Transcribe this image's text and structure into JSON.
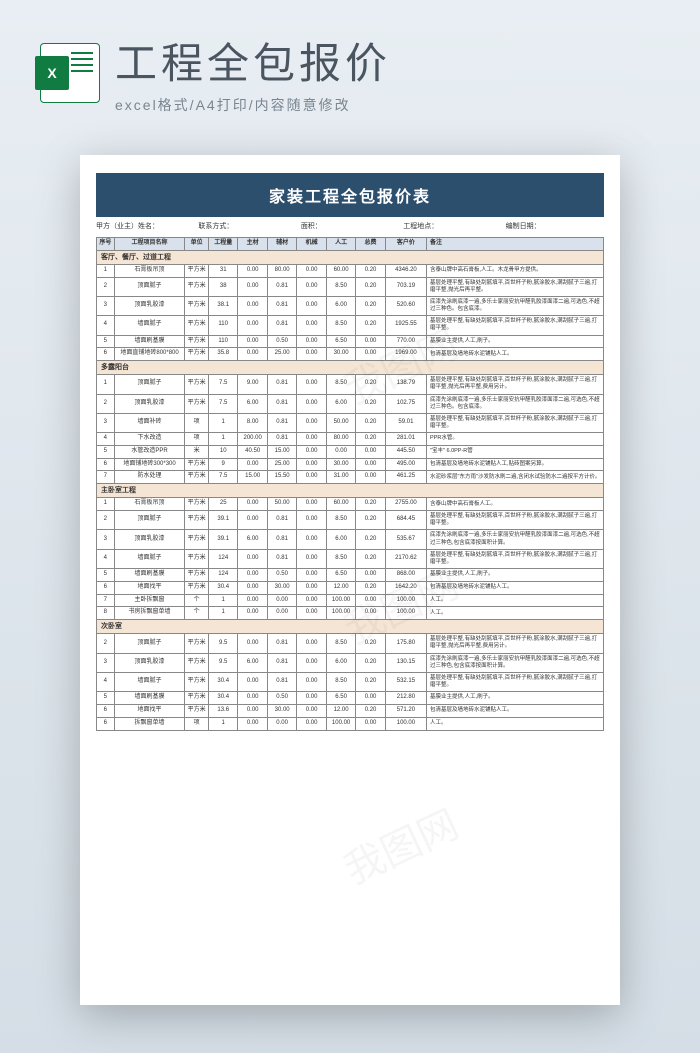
{
  "header": {
    "big_title": "工程全包报价",
    "subtitle": "excel格式/A4打印/内容随意修改",
    "icon_letter": "X"
  },
  "doc": {
    "title": "家装工程全包报价表",
    "info_labels": [
      "甲方（业主）姓名：",
      "联系方式：",
      "面积：",
      "工程地点：",
      "编制日期："
    ],
    "columns": [
      "序号",
      "工程项目名称",
      "单位",
      "工程量",
      "主材",
      "辅材",
      "机械",
      "人工",
      "总费",
      "客户价",
      "备注"
    ]
  },
  "sections": [
    {
      "name": "客厅、餐厅、过道工程",
      "rows": [
        {
          "idx": "1",
          "name": "石膏板吊顶",
          "unit": "平方米",
          "qty": "31",
          "c1": "0.00",
          "c2": "80.00",
          "c3": "0.00",
          "c4": "60.00",
          "c5": "0.20",
          "total": "4346.20",
          "note": "含泰山牌中高石膏板,人工。木龙骨甲方提供。"
        },
        {
          "idx": "2",
          "name": "顶面腻子",
          "unit": "平方米",
          "qty": "38",
          "c1": "0.00",
          "c2": "0.81",
          "c3": "0.00",
          "c4": "8.50",
          "c5": "0.20",
          "total": "703.19",
          "note": "基层处理平整,有缺处刮腻填平,百世杯子粉,腻涂胶水,满刮腻子三遍,打磨平整,抛光后再平整。"
        },
        {
          "idx": "3",
          "name": "顶面乳胶漆",
          "unit": "平方米",
          "qty": "38.1",
          "c1": "0.00",
          "c2": "0.81",
          "c3": "0.00",
          "c4": "6.00",
          "c5": "0.20",
          "total": "520.60",
          "note": "底漆先涂刷底漆一遍,多乐士家丽安抗甲醛乳胶漆面漆二遍,可选色,不超过三种色。包含底漆。"
        },
        {
          "idx": "4",
          "name": "墙面腻子",
          "unit": "平方米",
          "qty": "110",
          "c1": "0.00",
          "c2": "0.81",
          "c3": "0.00",
          "c4": "8.50",
          "c5": "0.20",
          "total": "1925.55",
          "note": "基层处理平整,有缺处刮腻填平,百世杯子粉,腻涂胶水,满刮腻子三遍,打磨平整。"
        },
        {
          "idx": "5",
          "name": "墙面刷基膜",
          "unit": "平方米",
          "qty": "110",
          "c1": "0.00",
          "c2": "0.50",
          "c3": "0.00",
          "c4": "6.50",
          "c5": "0.00",
          "total": "770.00",
          "note": "基膜业主提供,人工,刷子。"
        },
        {
          "idx": "6",
          "name": "地面直铺地砖800*800",
          "unit": "平方米",
          "qty": "35.8",
          "c1": "0.00",
          "c2": "25.00",
          "c3": "0.00",
          "c4": "30.00",
          "c5": "0.00",
          "total": "1969.00",
          "note": "包清基层及墙地砖水泥铺贴人工。"
        }
      ]
    },
    {
      "name": "多露阳台",
      "rows": [
        {
          "idx": "1",
          "name": "顶面腻子",
          "unit": "平方米",
          "qty": "7.5",
          "c1": "9.00",
          "c2": "0.81",
          "c3": "0.00",
          "c4": "8.50",
          "c5": "0.20",
          "total": "138.79",
          "note": "基层处理平整,有缺处刮腻填平,百世杯子粉,腻涂胶水,满刮腻子三遍,打磨平整,抛光后再平整,费用另计。"
        },
        {
          "idx": "2",
          "name": "顶面乳胶漆",
          "unit": "平方米",
          "qty": "7.5",
          "c1": "6.00",
          "c2": "0.81",
          "c3": "0.00",
          "c4": "6.00",
          "c5": "0.20",
          "total": "102.75",
          "note": "底漆先涂刷底漆一遍,多乐士家丽安抗甲醛乳胶漆面漆二遍,可选色,不超过三种色。包含底漆。"
        },
        {
          "idx": "3",
          "name": "墙面补砖",
          "unit": "项",
          "qty": "1",
          "c1": "8.00",
          "c2": "0.81",
          "c3": "0.00",
          "c4": "50.00",
          "c5": "0.20",
          "total": "59.01",
          "note": "基层处理平整,有缺处刮腻填平,百世杯子粉,腻涂胶水,满刮腻子三遍,打磨平整。"
        },
        {
          "idx": "4",
          "name": "下水改造",
          "unit": "项",
          "qty": "1",
          "c1": "200.00",
          "c2": "0.81",
          "c3": "0.00",
          "c4": "80.00",
          "c5": "0.20",
          "total": "281.01",
          "note": "PPR水管。"
        },
        {
          "idx": "5",
          "name": "水管改造PPR",
          "unit": "米",
          "qty": "10",
          "c1": "40.50",
          "c2": "15.00",
          "c3": "0.00",
          "c4": "0.00",
          "c5": "0.00",
          "total": "445.50",
          "note": "\"宝丰\" 6.0PP-R管"
        },
        {
          "idx": "6",
          "name": "地面铺地砖300*300",
          "unit": "平方米",
          "qty": "9",
          "c1": "0.00",
          "c2": "25.00",
          "c3": "0.00",
          "c4": "30.00",
          "c5": "0.00",
          "total": "495.00",
          "note": "包清基层及墙地砖水泥铺贴人工,贴砖图案另算。"
        },
        {
          "idx": "7",
          "name": "防水处理",
          "unit": "平方米",
          "qty": "7.5",
          "c1": "15.00",
          "c2": "15.50",
          "c3": "0.00",
          "c4": "31.00",
          "c5": "0.00",
          "total": "461.25",
          "note": "水泥砂浆层\"东方雨\"沙发防水刷二遍,含闭水试验防水二遍按平方计价。"
        }
      ]
    },
    {
      "name": "主卧室工程",
      "rows": [
        {
          "idx": "1",
          "name": "石膏板吊顶",
          "unit": "平方米",
          "qty": "25",
          "c1": "0.00",
          "c2": "50.00",
          "c3": "0.00",
          "c4": "60.00",
          "c5": "0.20",
          "total": "2755.00",
          "note": "含泰山牌中高石膏板人工。"
        },
        {
          "idx": "2",
          "name": "顶面腻子",
          "unit": "平方米",
          "qty": "39.1",
          "c1": "0.00",
          "c2": "0.81",
          "c3": "0.00",
          "c4": "8.50",
          "c5": "0.20",
          "total": "684.45",
          "note": "基层处理平整,有缺处刮腻填平,百世杯子粉,腻涂胶水,满刮腻子三遍,打磨平整。"
        },
        {
          "idx": "3",
          "name": "顶面乳胶漆",
          "unit": "平方米",
          "qty": "39.1",
          "c1": "6.00",
          "c2": "0.81",
          "c3": "0.00",
          "c4": "6.00",
          "c5": "0.20",
          "total": "535.67",
          "note": "底漆先涂刷底漆一遍,多乐士家丽安抗甲醛乳胶漆面漆二遍,可选色,不超过三种色,包含底漆按面积计算。"
        },
        {
          "idx": "4",
          "name": "墙面腻子",
          "unit": "平方米",
          "qty": "124",
          "c1": "0.00",
          "c2": "0.81",
          "c3": "0.00",
          "c4": "8.50",
          "c5": "0.20",
          "total": "2170.62",
          "note": "基层处理平整,有缺处刮腻填平,百世杯子粉,腻涂胶水,满刮腻子三遍,打磨平整。"
        },
        {
          "idx": "5",
          "name": "墙面刷基膜",
          "unit": "平方米",
          "qty": "124",
          "c1": "0.00",
          "c2": "0.50",
          "c3": "0.00",
          "c4": "6.50",
          "c5": "0.00",
          "total": "868.00",
          "note": "基膜业主提供,人工,刷子。"
        },
        {
          "idx": "6",
          "name": "地面找平",
          "unit": "平方米",
          "qty": "30.4",
          "c1": "0.00",
          "c2": "30.00",
          "c3": "0.00",
          "c4": "12.00",
          "c5": "0.20",
          "total": "1642.20",
          "note": "包清基层及墙地砖水泥铺贴人工。"
        },
        {
          "idx": "7",
          "name": "主卧拆飘窗",
          "unit": "个",
          "qty": "1",
          "c1": "0.00",
          "c2": "0.00",
          "c3": "0.00",
          "c4": "100.00",
          "c5": "0.00",
          "total": "100.00",
          "note": "人工。"
        },
        {
          "idx": "8",
          "name": "书房拆飘窗单墙",
          "unit": "个",
          "qty": "1",
          "c1": "0.00",
          "c2": "0.00",
          "c3": "0.00",
          "c4": "100.00",
          "c5": "0.00",
          "total": "100.00",
          "note": "人工。"
        }
      ]
    },
    {
      "name": "次卧室",
      "rows": [
        {
          "idx": "2",
          "name": "顶面腻子",
          "unit": "平方米",
          "qty": "9.5",
          "c1": "0.00",
          "c2": "0.81",
          "c3": "0.00",
          "c4": "8.50",
          "c5": "0.20",
          "total": "175.80",
          "note": "基层处理平整,有缺处刮腻填平,百世杯子粉,腻涂胶水,满刮腻子三遍,打磨平整,抛光后再平整,费用另计。"
        },
        {
          "idx": "3",
          "name": "顶面乳胶漆",
          "unit": "平方米",
          "qty": "9.5",
          "c1": "6.00",
          "c2": "0.81",
          "c3": "0.00",
          "c4": "6.00",
          "c5": "0.20",
          "total": "130.15",
          "note": "底漆先涂刷底漆一遍,多乐士家丽安抗甲醛乳胶漆面漆二遍,可选色,不超过三种色,包含底漆按面积计算。"
        },
        {
          "idx": "4",
          "name": "墙面腻子",
          "unit": "平方米",
          "qty": "30.4",
          "c1": "0.00",
          "c2": "0.81",
          "c3": "0.00",
          "c4": "8.50",
          "c5": "0.20",
          "total": "532.15",
          "note": "基层处理平整,有缺处刮腻填平,百世杯子粉,腻涂胶水,满刮腻子三遍,打磨平整。"
        },
        {
          "idx": "5",
          "name": "墙面刷基膜",
          "unit": "平方米",
          "qty": "30.4",
          "c1": "0.00",
          "c2": "0.50",
          "c3": "0.00",
          "c4": "6.50",
          "c5": "0.00",
          "total": "212.80",
          "note": "基膜业主提供,人工,刷子。"
        },
        {
          "idx": "6",
          "name": "地面找平",
          "unit": "平方米",
          "qty": "13.6",
          "c1": "0.00",
          "c2": "30.00",
          "c3": "0.00",
          "c4": "12.00",
          "c5": "0.20",
          "total": "571.20",
          "note": "包清基层及墙地砖水泥铺贴人工。"
        },
        {
          "idx": "6",
          "name": "拆飘窗单墙",
          "unit": "项",
          "qty": "1",
          "c1": "0.00",
          "c2": "0.00",
          "c3": "0.00",
          "c4": "100.00",
          "c5": "0.00",
          "total": "100.00",
          "note": "人工。"
        }
      ]
    }
  ],
  "watermarks": [
    "我图网",
    "我图网",
    "我图网"
  ]
}
